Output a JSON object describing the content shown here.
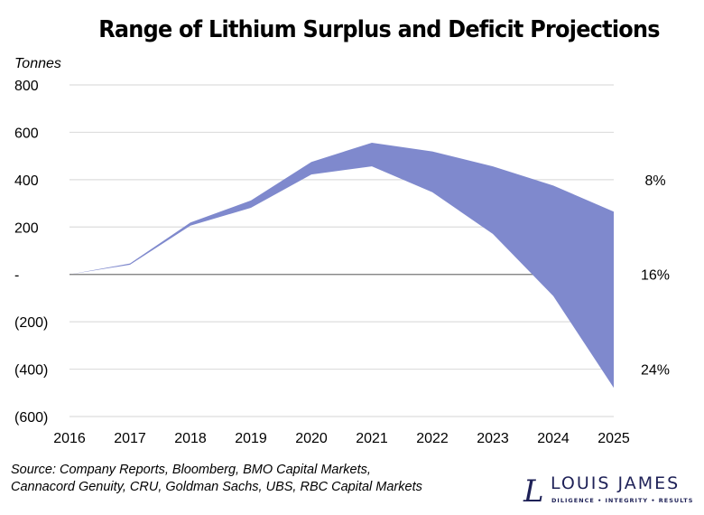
{
  "chart_data": {
    "type": "area",
    "title": "Range of Lithium Surplus and Deficit Projections",
    "ylabel": "Tonnes",
    "xlabel": "",
    "categories": [
      "2016",
      "2017",
      "2018",
      "2019",
      "2020",
      "2021",
      "2022",
      "2023",
      "2024",
      "2025"
    ],
    "series": [
      {
        "role": "upper",
        "values": [
          0,
          46,
          219,
          312,
          475,
          556,
          519,
          456,
          375,
          265
        ]
      },
      {
        "role": "lower",
        "values": [
          0,
          41,
          206,
          281,
          422,
          456,
          347,
          171,
          -91,
          -479
        ]
      }
    ],
    "ylim": [
      -600,
      800
    ],
    "yticks": [
      800,
      600,
      400,
      200,
      0,
      -200,
      -400,
      -600
    ],
    "ytick_labels": [
      "800",
      "600",
      "400",
      "200",
      "-",
      "(200)",
      "(400)",
      "(600)"
    ],
    "right_annotations": [
      {
        "text": "8%",
        "y": 400
      },
      {
        "text": "16%",
        "y": 0
      },
      {
        "text": "24%",
        "y": -400
      }
    ],
    "grid": true,
    "fill_color": "#7f89cd"
  },
  "source_lines": [
    "Source: Company Reports, Bloomberg, BMO Capital Markets,",
    "Cannacord Genuity, CRU, Goldman Sachs, UBS, RBC Capital Markets"
  ],
  "logo": {
    "name": "LOUIS JAMES",
    "tagline": "DILIGENCE  •  INTEGRITY  •  RESULTS",
    "color": "#1e2157"
  }
}
